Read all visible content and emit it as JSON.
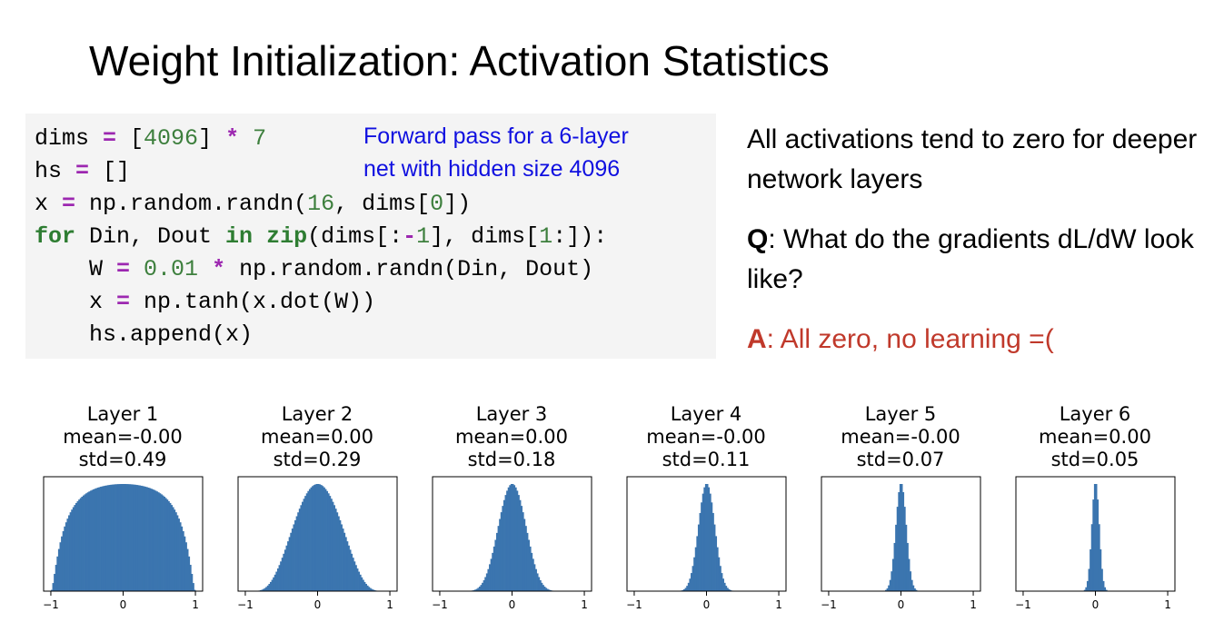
{
  "slide": {
    "title": "Weight Initialization: Activation Statistics"
  },
  "code": {
    "lines": [
      [
        {
          "t": "dims ",
          "c": "id"
        },
        {
          "t": "=",
          "c": "op"
        },
        {
          "t": " [",
          "c": "id"
        },
        {
          "t": "4096",
          "c": "num"
        },
        {
          "t": "] ",
          "c": "id"
        },
        {
          "t": "*",
          "c": "op"
        },
        {
          "t": " ",
          "c": "id"
        },
        {
          "t": "7",
          "c": "num"
        }
      ],
      [
        {
          "t": "hs ",
          "c": "id"
        },
        {
          "t": "=",
          "c": "op"
        },
        {
          "t": " []",
          "c": "id"
        }
      ],
      [
        {
          "t": "x ",
          "c": "id"
        },
        {
          "t": "=",
          "c": "op"
        },
        {
          "t": " np.random.randn(",
          "c": "id"
        },
        {
          "t": "16",
          "c": "num"
        },
        {
          "t": ", dims[",
          "c": "id"
        },
        {
          "t": "0",
          "c": "num"
        },
        {
          "t": "])",
          "c": "id"
        }
      ],
      [
        {
          "t": "for",
          "c": "kw"
        },
        {
          "t": " Din, Dout ",
          "c": "id"
        },
        {
          "t": "in",
          "c": "kw"
        },
        {
          "t": " ",
          "c": "id"
        },
        {
          "t": "zip",
          "c": "kw"
        },
        {
          "t": "(dims[:",
          "c": "id"
        },
        {
          "t": "-",
          "c": "op"
        },
        {
          "t": "1",
          "c": "num"
        },
        {
          "t": "], dims[",
          "c": "id"
        },
        {
          "t": "1",
          "c": "num"
        },
        {
          "t": ":]):",
          "c": "id"
        }
      ],
      [
        {
          "t": "    W ",
          "c": "id"
        },
        {
          "t": "=",
          "c": "op"
        },
        {
          "t": " ",
          "c": "id"
        },
        {
          "t": "0.01",
          "c": "num"
        },
        {
          "t": " ",
          "c": "id"
        },
        {
          "t": "*",
          "c": "op"
        },
        {
          "t": " np.random.randn(Din, Dout)",
          "c": "id"
        }
      ],
      [
        {
          "t": "    x ",
          "c": "id"
        },
        {
          "t": "=",
          "c": "op"
        },
        {
          "t": " np.tanh(x.dot(W))",
          "c": "id"
        }
      ],
      [
        {
          "t": "    hs.append(x)",
          "c": "id"
        }
      ]
    ],
    "note_line1": "Forward pass for a 6-layer",
    "note_line2": "net with hidden size 4096"
  },
  "text": {
    "p1": "All activations tend to zero for deeper network layers",
    "q_label": "Q",
    "q_text": ": What do the gradients dL/dW look like?",
    "a_label": "A",
    "a_text": ": All zero, no learning =("
  },
  "colors": {
    "bar": "#3b75af",
    "answer": "#c0392b",
    "note": "#1010e0"
  },
  "chart_data": [
    {
      "type": "bar",
      "title": "Layer 1",
      "subtitle_mean": "mean=-0.00",
      "subtitle_std": "std=0.49",
      "mean": 0.0,
      "std": 0.49,
      "xlim": [
        -1,
        1
      ],
      "xticks": [
        -1,
        0,
        1
      ],
      "xtick_labels": [
        "−1",
        "0",
        "1"
      ]
    },
    {
      "type": "bar",
      "title": "Layer 2",
      "subtitle_mean": "mean=0.00",
      "subtitle_std": "std=0.29",
      "mean": 0.0,
      "std": 0.29,
      "xlim": [
        -1,
        1
      ],
      "xticks": [
        -1,
        0,
        1
      ],
      "xtick_labels": [
        "−1",
        "0",
        "1"
      ]
    },
    {
      "type": "bar",
      "title": "Layer 3",
      "subtitle_mean": "mean=0.00",
      "subtitle_std": "std=0.18",
      "mean": 0.0,
      "std": 0.18,
      "xlim": [
        -1,
        1
      ],
      "xticks": [
        -1,
        0,
        1
      ],
      "xtick_labels": [
        "−1",
        "0",
        "1"
      ]
    },
    {
      "type": "bar",
      "title": "Layer 4",
      "subtitle_mean": "mean=-0.00",
      "subtitle_std": "std=0.11",
      "mean": 0.0,
      "std": 0.11,
      "xlim": [
        -1,
        1
      ],
      "xticks": [
        -1,
        0,
        1
      ],
      "xtick_labels": [
        "−1",
        "0",
        "1"
      ]
    },
    {
      "type": "bar",
      "title": "Layer 5",
      "subtitle_mean": "mean=-0.00",
      "subtitle_std": "std=0.07",
      "mean": 0.0,
      "std": 0.07,
      "xlim": [
        -1,
        1
      ],
      "xticks": [
        -1,
        0,
        1
      ],
      "xtick_labels": [
        "−1",
        "0",
        "1"
      ]
    },
    {
      "type": "bar",
      "title": "Layer 6",
      "subtitle_mean": "mean=0.00",
      "subtitle_std": "std=0.05",
      "mean": 0.0,
      "std": 0.05,
      "xlim": [
        -1,
        1
      ],
      "xticks": [
        -1,
        0,
        1
      ],
      "xtick_labels": [
        "−1",
        "0",
        "1"
      ]
    }
  ]
}
